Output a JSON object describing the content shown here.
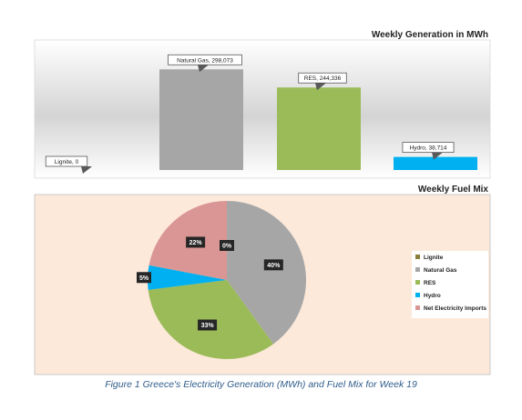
{
  "chart_data": [
    {
      "type": "bar",
      "title": "Weekly Generation in MWh",
      "categories": [
        "Lignite",
        "Natural Gas",
        "RES",
        "Hydro"
      ],
      "values": [
        0,
        298073,
        244336,
        38714
      ],
      "callout_labels": [
        "Lignite, 0",
        "Natural Gas, 298,073",
        "RES, 244,336",
        "Hydro, 38,714"
      ],
      "colors": [
        "#8B7D3A",
        "#A6A6A6",
        "#9BBB59",
        "#00B0F0"
      ],
      "ylim": [
        0,
        350000
      ],
      "xlabel": "",
      "ylabel": "",
      "grid": false,
      "legend": "none"
    },
    {
      "type": "pie",
      "title": "Weekly Fuel Mix",
      "categories": [
        "Lignite",
        "Natural Gas",
        "RES",
        "Hydro",
        "Net Electricity Imports"
      ],
      "values": [
        0,
        40,
        33,
        5,
        22
      ],
      "labels": [
        "0%",
        "40%",
        "33%",
        "5%",
        "22%"
      ],
      "colors": [
        "#8B7D3A",
        "#A6A6A6",
        "#9BBB59",
        "#00B0F0",
        "#DA9694"
      ],
      "legend": "right"
    }
  ],
  "caption": "Figure 1 Greece's Electricity Generation (MWh) and Fuel Mix for Week 19"
}
